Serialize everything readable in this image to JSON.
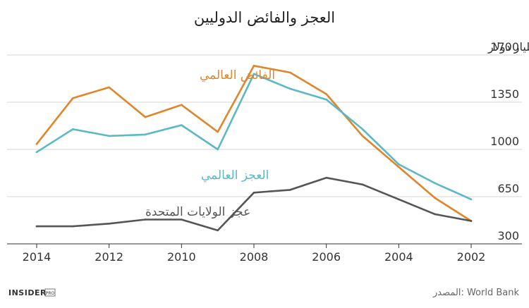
{
  "chart_data": {
    "type": "line",
    "title": "العجز والفائض الدوليين",
    "x": [
      2002,
      2003,
      2004,
      2005,
      2006,
      2007,
      2008,
      2009,
      2010,
      2011,
      2012,
      2013,
      2014
    ],
    "x_ticks": [
      2014,
      2012,
      2010,
      2008,
      2006,
      2004,
      2002
    ],
    "x_reversed": true,
    "y_ticks": [
      300,
      650,
      1000,
      1350,
      1700
    ],
    "ylim": [
      300,
      1700
    ],
    "ylabel": "مليار دولار",
    "grid": true,
    "series": [
      {
        "name": "الفائض العالمي",
        "color": "#e0852a",
        "values": [
          470,
          640,
          870,
          1100,
          1410,
          1570,
          1620,
          1130,
          1330,
          1240,
          1460,
          1380,
          1040
        ]
      },
      {
        "name": "العجز العالمي",
        "color": "#5bb8c5",
        "values": [
          630,
          750,
          890,
          1150,
          1370,
          1450,
          1560,
          1000,
          1180,
          1110,
          1100,
          1150,
          980
        ]
      },
      {
        "name": "عجز الولايات المتحدة",
        "color": "#555555",
        "values": [
          470,
          520,
          630,
          740,
          790,
          700,
          680,
          400,
          480,
          480,
          450,
          430,
          430
        ]
      }
    ]
  },
  "footer": {
    "source": "المصدر: World Bank",
    "brand": "INSIDER",
    "brand_badge": "PRO"
  }
}
